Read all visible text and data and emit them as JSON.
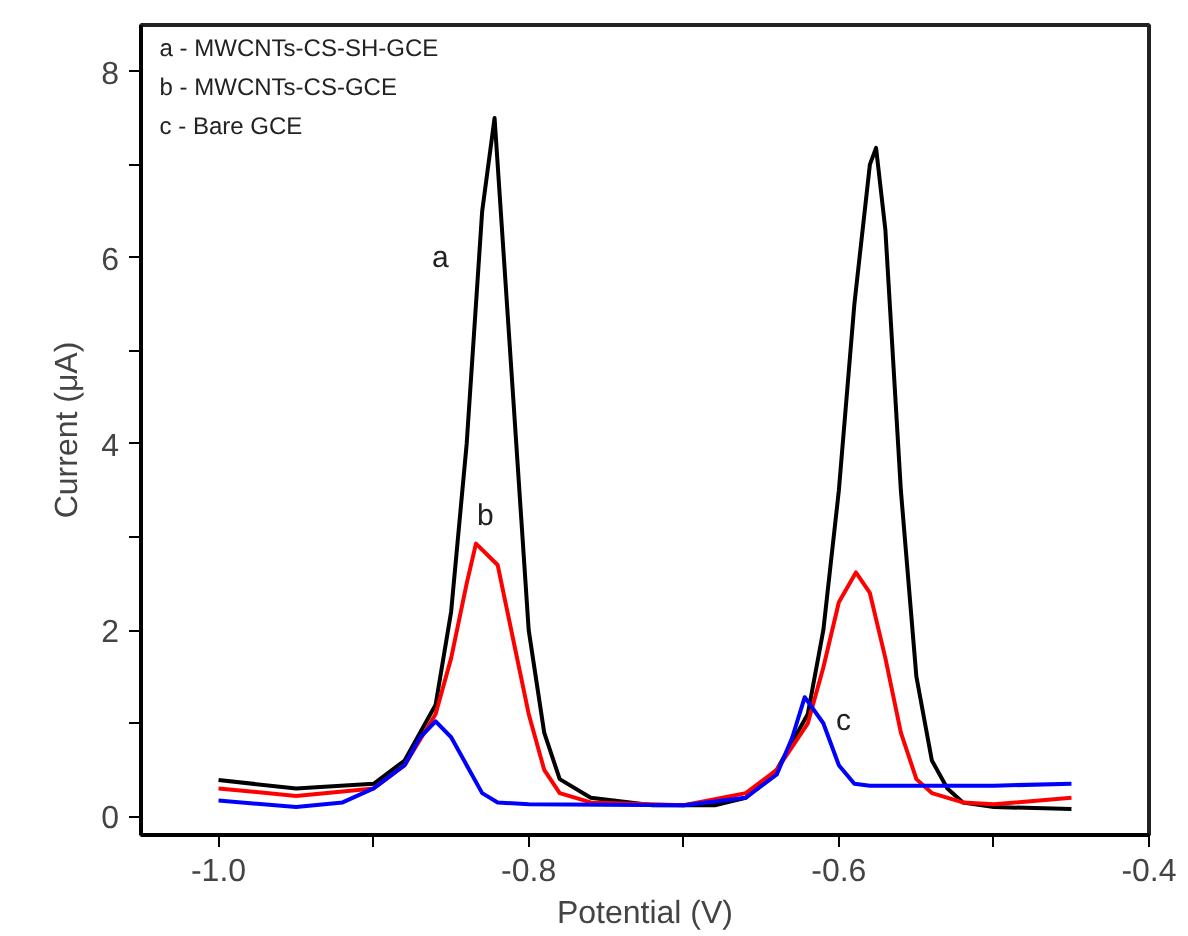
{
  "chart_data": {
    "type": "line",
    "xlabel": "Potential (V)",
    "ylabel": "Current (μA)",
    "xlim": [
      -1.05,
      -0.4
    ],
    "ylim": [
      -0.2,
      8.5
    ],
    "xticks": [
      {
        "value": -1.0,
        "label": "-1.0"
      },
      {
        "value": -0.9,
        "label": null
      },
      -0.8,
      {
        "value": -0.7,
        "label": null
      },
      -0.6,
      {
        "value": -0.5,
        "label": null
      },
      -0.4
    ],
    "yticks": [
      0,
      {
        "value": 1,
        "label": null
      },
      2,
      {
        "value": 3,
        "label": null
      },
      4,
      {
        "value": 5,
        "label": null
      },
      6,
      {
        "value": 7,
        "label": null
      },
      8
    ],
    "grid": false,
    "marker": "none",
    "line_style": "solid",
    "series": [
      {
        "name": "a",
        "color": "#000000",
        "x": [
          -1.0,
          -0.95,
          -0.9,
          -0.88,
          -0.86,
          -0.85,
          -0.84,
          -0.83,
          -0.822,
          -0.81,
          -0.8,
          -0.79,
          -0.78,
          -0.76,
          -0.72,
          -0.68,
          -0.66,
          -0.64,
          -0.62,
          -0.61,
          -0.6,
          -0.59,
          -0.58,
          -0.576,
          -0.57,
          -0.56,
          -0.55,
          -0.54,
          -0.53,
          -0.52,
          -0.5,
          -0.45
        ],
        "values": [
          0.39,
          0.3,
          0.35,
          0.6,
          1.2,
          2.2,
          4.0,
          6.5,
          7.5,
          4.5,
          2.0,
          0.9,
          0.4,
          0.2,
          0.12,
          0.12,
          0.2,
          0.5,
          1.1,
          2.0,
          3.5,
          5.5,
          7.0,
          7.18,
          6.3,
          3.5,
          1.5,
          0.6,
          0.3,
          0.15,
          0.1,
          0.08
        ]
      },
      {
        "name": "b",
        "color": "#ff0000",
        "x": [
          -1.0,
          -0.95,
          -0.9,
          -0.88,
          -0.86,
          -0.85,
          -0.84,
          -0.834,
          -0.82,
          -0.81,
          -0.8,
          -0.79,
          -0.78,
          -0.76,
          -0.7,
          -0.66,
          -0.64,
          -0.62,
          -0.61,
          -0.6,
          -0.589,
          -0.58,
          -0.57,
          -0.56,
          -0.55,
          -0.54,
          -0.52,
          -0.5,
          -0.45
        ],
        "values": [
          0.3,
          0.22,
          0.3,
          0.55,
          1.1,
          1.7,
          2.5,
          2.93,
          2.7,
          1.9,
          1.1,
          0.5,
          0.25,
          0.15,
          0.12,
          0.25,
          0.5,
          1.0,
          1.6,
          2.3,
          2.62,
          2.4,
          1.7,
          0.9,
          0.4,
          0.25,
          0.15,
          0.13,
          0.2
        ]
      },
      {
        "name": "c",
        "color": "#0000ff",
        "x": [
          -1.0,
          -0.95,
          -0.92,
          -0.9,
          -0.88,
          -0.87,
          -0.86,
          -0.85,
          -0.84,
          -0.83,
          -0.82,
          -0.8,
          -0.7,
          -0.66,
          -0.64,
          -0.63,
          -0.622,
          -0.61,
          -0.6,
          -0.59,
          -0.58,
          -0.5,
          -0.45
        ],
        "values": [
          0.17,
          0.1,
          0.15,
          0.3,
          0.55,
          0.85,
          1.02,
          0.85,
          0.55,
          0.25,
          0.15,
          0.13,
          0.12,
          0.2,
          0.45,
          0.85,
          1.28,
          1.0,
          0.55,
          0.35,
          0.33,
          0.33,
          0.35
        ]
      }
    ],
    "annotations": [
      "a - MWCNTs-CS-SH-GCE",
      "b - MWCNTs-CS-GCE",
      "c - Bare GCE"
    ]
  }
}
